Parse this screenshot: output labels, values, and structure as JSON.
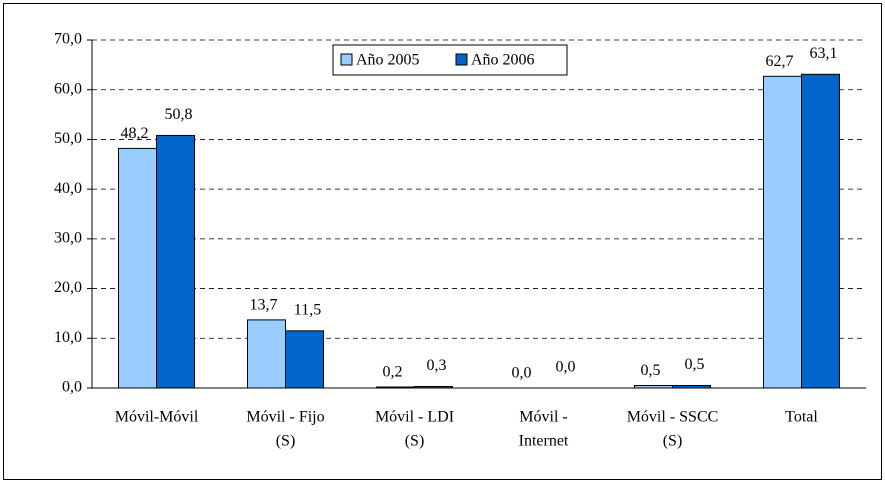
{
  "chart_data": {
    "type": "bar",
    "categories": [
      [
        "Móvil-Móvil"
      ],
      [
        "Móvil - Fijo",
        "(S)"
      ],
      [
        "Móvil - LDI",
        "(S)"
      ],
      [
        "Móvil -",
        "Internet"
      ],
      [
        "Móvil - SSCC",
        "(S)"
      ],
      [
        "Total"
      ]
    ],
    "series": [
      {
        "name": "Año 2005",
        "color": "#99ccff",
        "values": [
          48.2,
          13.7,
          0.2,
          0.0,
          0.5,
          62.7
        ],
        "value_labels": [
          "48,2",
          "13,7",
          "0,2",
          "0,0",
          "0,5",
          "62,7"
        ]
      },
      {
        "name": "Año 2006",
        "color": "#0066cc",
        "values": [
          50.8,
          11.5,
          0.3,
          0.0,
          0.5,
          63.1
        ],
        "value_labels": [
          "50,8",
          "11,5",
          "0,3",
          "0,0",
          "0,5",
          "63,1"
        ]
      }
    ],
    "ylim": [
      0,
      70
    ],
    "yticks": [
      {
        "value": 0,
        "label": "0,0"
      },
      {
        "value": 10,
        "label": "10,0"
      },
      {
        "value": 20,
        "label": "20,0"
      },
      {
        "value": 30,
        "label": "30,0"
      },
      {
        "value": 40,
        "label": "40,0"
      },
      {
        "value": 50,
        "label": "50,0"
      },
      {
        "value": 60,
        "label": "60,0"
      },
      {
        "value": 70,
        "label": "70,0"
      }
    ],
    "grid": true,
    "legend": "top"
  }
}
